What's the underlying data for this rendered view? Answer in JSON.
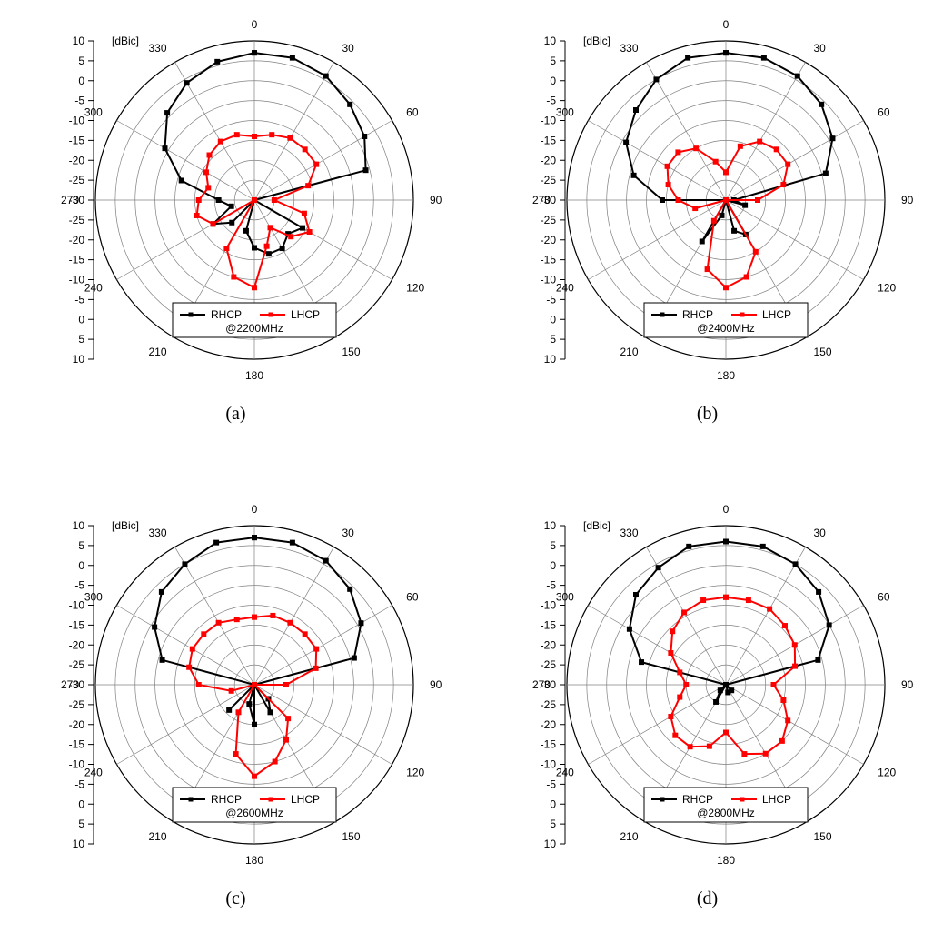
{
  "layout": {
    "cols": 2,
    "rows": 2,
    "panel_labels": [
      "(a)",
      "(b)",
      "(c)",
      "(d)"
    ],
    "svg_size": 480,
    "label_fontsize": 20
  },
  "polar_common": {
    "unit_label": "[dBic]",
    "angle_ticks": [
      0,
      30,
      60,
      90,
      120,
      150,
      180,
      210,
      240,
      270,
      300,
      330
    ],
    "radial_ticks": [
      10,
      5,
      0,
      -5,
      -10,
      -15,
      -20,
      -25,
      -30,
      -25,
      -20,
      -15,
      -10,
      -5,
      0,
      5,
      10
    ],
    "radial_grid_values": [
      10,
      5,
      0,
      -5,
      -10,
      -15,
      -20,
      -25,
      -30
    ],
    "r_min": -30,
    "r_max": 10,
    "grid_color": "#808080",
    "text_color": "#000000",
    "tick_fontsize": 12,
    "marker_size": 5,
    "line_width": 2,
    "series_styles": {
      "RHCP": {
        "color": "#000000",
        "marker": "square"
      },
      "LHCP": {
        "color": "#ff0000",
        "marker": "square"
      }
    },
    "legend": {
      "border_color": "#000000",
      "bg_color": "#ffffff",
      "fontsize": 12
    }
  },
  "panels": [
    {
      "id": "a",
      "freq_label": "@2200MHz",
      "series": {
        "RHCP": {
          "angles": [
            0,
            15,
            30,
            45,
            60,
            75,
            90,
            105,
            120,
            135,
            150,
            165,
            180,
            195,
            210,
            225,
            240,
            255,
            270,
            285,
            300,
            315,
            330,
            345,
            360
          ],
          "values": [
            7,
            7,
            6,
            4,
            2,
            -1,
            -30,
            -30,
            -16,
            -18,
            -16,
            -16,
            -18,
            -22,
            -30,
            -22,
            -18,
            -24,
            -21,
            -11,
            -4,
            1,
            4,
            6,
            7
          ]
        },
        "LHCP": {
          "angles": [
            0,
            15,
            30,
            45,
            60,
            75,
            90,
            105,
            120,
            135,
            150,
            165,
            180,
            195,
            210,
            225,
            240,
            255,
            270,
            285,
            300,
            315,
            330,
            345,
            360
          ],
          "values": [
            -14,
            -13,
            -12,
            -12,
            -12,
            -16,
            -25,
            -17,
            -14,
            -17,
            -22,
            -18,
            -8,
            -10,
            -16,
            -30,
            -18,
            -15,
            -16,
            -18,
            -16,
            -14,
            -13,
            -13,
            -14
          ]
        }
      }
    },
    {
      "id": "b",
      "freq_label": "@2400MHz",
      "series": {
        "RHCP": {
          "angles": [
            0,
            15,
            30,
            45,
            60,
            75,
            90,
            105,
            120,
            135,
            150,
            165,
            180,
            195,
            210,
            225,
            240,
            255,
            270,
            285,
            300,
            315,
            330,
            345,
            360
          ],
          "values": [
            7,
            7,
            6,
            4,
            1,
            -4,
            -28,
            -25,
            -30,
            -30,
            -20,
            -22,
            -30,
            -26,
            -18,
            -30,
            -30,
            -30,
            -14,
            -6,
            -1,
            2,
            5,
            7,
            7
          ]
        },
        "LHCP": {
          "angles": [
            0,
            15,
            30,
            45,
            60,
            75,
            90,
            105,
            120,
            135,
            150,
            165,
            180,
            195,
            210,
            225,
            240,
            255,
            270,
            285,
            300,
            315,
            330,
            345,
            360
          ],
          "values": [
            -23,
            -16,
            -13,
            -12,
            -12,
            -15,
            -22,
            -30,
            -30,
            -30,
            -15,
            -10,
            -8,
            -12,
            -24,
            -30,
            -30,
            -22,
            -18,
            -15,
            -13,
            -13,
            -15,
            -20,
            -23
          ]
        }
      }
    },
    {
      "id": "c",
      "freq_label": "@2600MHz",
      "series": {
        "RHCP": {
          "angles": [
            0,
            15,
            30,
            45,
            60,
            75,
            90,
            105,
            120,
            135,
            150,
            165,
            180,
            195,
            210,
            225,
            240,
            255,
            270,
            285,
            300,
            315,
            330,
            345,
            360
          ],
          "values": [
            7,
            7,
            6,
            4,
            1,
            -4,
            -30,
            -30,
            -30,
            -25,
            -22,
            -30,
            -20,
            -25,
            -30,
            -21,
            -30,
            -30,
            -30,
            -6,
            -1,
            3,
            5,
            7,
            7
          ]
        },
        "LHCP": {
          "angles": [
            0,
            15,
            30,
            45,
            60,
            75,
            90,
            105,
            120,
            135,
            150,
            165,
            180,
            195,
            210,
            225,
            240,
            255,
            270,
            285,
            300,
            315,
            330,
            345,
            360
          ],
          "values": [
            -13,
            -12,
            -12,
            -12,
            -12,
            -14,
            -22,
            -30,
            -30,
            -18,
            -14,
            -10,
            -7,
            -12,
            -22,
            -30,
            -30,
            -24,
            -16,
            -13,
            -12,
            -12,
            -12,
            -13,
            -13
          ]
        }
      }
    },
    {
      "id": "d",
      "freq_label": "@2800MHz",
      "series": {
        "RHCP": {
          "angles": [
            0,
            15,
            30,
            45,
            60,
            75,
            90,
            105,
            120,
            135,
            150,
            165,
            180,
            195,
            210,
            225,
            240,
            255,
            270,
            285,
            300,
            315,
            330,
            345,
            360
          ],
          "values": [
            6,
            6,
            5,
            3,
            0,
            -6,
            -30,
            -30,
            -30,
            -28,
            -30,
            -28,
            -30,
            -30,
            -25,
            -28,
            -30,
            -30,
            -30,
            -8,
            -2,
            2,
            4,
            6,
            6
          ]
        },
        "LHCP": {
          "angles": [
            0,
            15,
            30,
            45,
            60,
            75,
            90,
            105,
            120,
            135,
            150,
            165,
            180,
            195,
            210,
            225,
            240,
            255,
            270,
            285,
            300,
            315,
            330,
            345,
            360
          ],
          "values": [
            -8,
            -8,
            -8,
            -9,
            -10,
            -12,
            -18,
            -15,
            -12,
            -10,
            -10,
            -12,
            -18,
            -14,
            -12,
            -12,
            -14,
            -18,
            -20,
            -18,
            -14,
            -11,
            -9,
            -8,
            -8
          ]
        }
      }
    }
  ]
}
